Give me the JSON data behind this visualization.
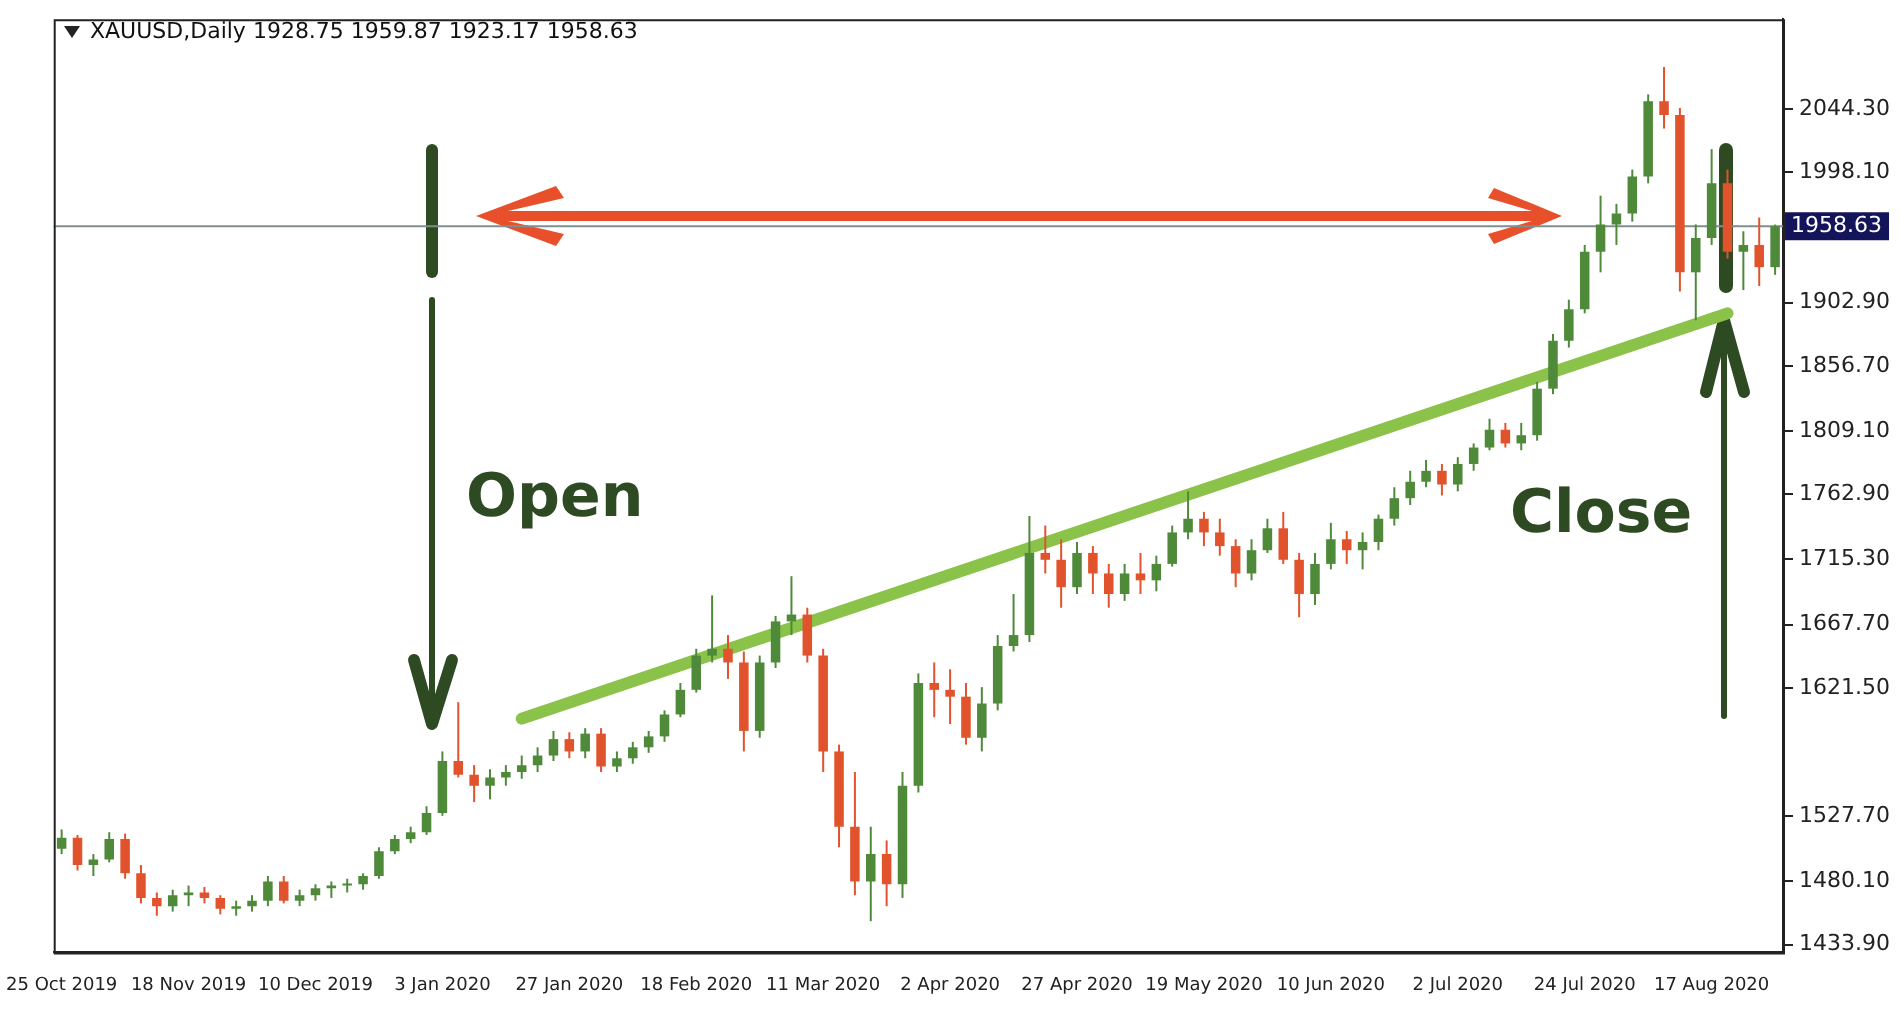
{
  "chart_data": {
    "type": "candlestick",
    "title": "XAUUSD,Daily 1928.75 1959.87 1923.17 1958.63",
    "categories": [
      "25 Oct 2019",
      null,
      null,
      null,
      null,
      null,
      null,
      null,
      "18 Nov 2019",
      null,
      null,
      null,
      null,
      null,
      null,
      null,
      "10 Dec 2019",
      null,
      null,
      null,
      null,
      null,
      null,
      null,
      "3 Jan 2020",
      null,
      null,
      null,
      null,
      null,
      null,
      null,
      "27 Jan 2020",
      null,
      null,
      null,
      null,
      null,
      null,
      null,
      "18 Feb 2020",
      null,
      null,
      null,
      null,
      null,
      null,
      null,
      "11 Mar 2020",
      null,
      null,
      null,
      null,
      null,
      null,
      null,
      "2 Apr 2020",
      null,
      null,
      null,
      null,
      null,
      null,
      null,
      "27 Apr 2020",
      null,
      null,
      null,
      null,
      null,
      null,
      null,
      "19 May 2020",
      null,
      null,
      null,
      null,
      null,
      null,
      null,
      "10 Jun 2020",
      null,
      null,
      null,
      null,
      null,
      null,
      null,
      "2 Jul 2020",
      null,
      null,
      null,
      null,
      null,
      null,
      null,
      "24 Jul 2020",
      null,
      null,
      null,
      null,
      null,
      null,
      null,
      "17 Aug 2020",
      null,
      null,
      null,
      null
    ],
    "ohlc": [
      [
        1504,
        1518,
        1500,
        1512
      ],
      [
        1512,
        1514,
        1488,
        1492
      ],
      [
        1492,
        1500,
        1484,
        1496
      ],
      [
        1496,
        1516,
        1494,
        1511
      ],
      [
        1511,
        1515,
        1482,
        1486
      ],
      [
        1486,
        1492,
        1464,
        1468
      ],
      [
        1468,
        1472,
        1455,
        1462
      ],
      [
        1462,
        1474,
        1458,
        1470
      ],
      [
        1470,
        1477,
        1462,
        1472
      ],
      [
        1472,
        1476,
        1464,
        1468
      ],
      [
        1468,
        1470,
        1456,
        1460
      ],
      [
        1460,
        1466,
        1455,
        1462
      ],
      [
        1462,
        1470,
        1458,
        1466
      ],
      [
        1466,
        1484,
        1462,
        1480
      ],
      [
        1480,
        1484,
        1464,
        1466
      ],
      [
        1466,
        1474,
        1462,
        1470
      ],
      [
        1470,
        1478,
        1466,
        1475
      ],
      [
        1475,
        1480,
        1468,
        1477
      ],
      [
        1477,
        1482,
        1472,
        1478
      ],
      [
        1478,
        1486,
        1474,
        1484
      ],
      [
        1484,
        1505,
        1482,
        1502
      ],
      [
        1502,
        1514,
        1500,
        1511
      ],
      [
        1511,
        1520,
        1508,
        1516
      ],
      [
        1516,
        1535,
        1514,
        1530
      ],
      [
        1530,
        1575,
        1528,
        1568
      ],
      [
        1568,
        1611,
        1556,
        1558
      ],
      [
        1558,
        1565,
        1538,
        1550
      ],
      [
        1550,
        1562,
        1540,
        1556
      ],
      [
        1556,
        1565,
        1550,
        1560
      ],
      [
        1560,
        1572,
        1555,
        1565
      ],
      [
        1565,
        1578,
        1560,
        1572
      ],
      [
        1572,
        1590,
        1568,
        1584
      ],
      [
        1584,
        1589,
        1570,
        1575
      ],
      [
        1575,
        1592,
        1570,
        1588
      ],
      [
        1588,
        1592,
        1560,
        1564
      ],
      [
        1564,
        1575,
        1560,
        1570
      ],
      [
        1570,
        1582,
        1566,
        1578
      ],
      [
        1578,
        1590,
        1574,
        1586
      ],
      [
        1586,
        1605,
        1582,
        1602
      ],
      [
        1602,
        1625,
        1600,
        1620
      ],
      [
        1620,
        1650,
        1618,
        1645
      ],
      [
        1645,
        1689,
        1640,
        1650
      ],
      [
        1650,
        1660,
        1628,
        1640
      ],
      [
        1640,
        1648,
        1575,
        1590
      ],
      [
        1590,
        1645,
        1585,
        1640
      ],
      [
        1640,
        1674,
        1636,
        1670
      ],
      [
        1670,
        1703,
        1660,
        1675
      ],
      [
        1675,
        1680,
        1640,
        1645
      ],
      [
        1645,
        1650,
        1560,
        1575
      ],
      [
        1575,
        1580,
        1505,
        1520
      ],
      [
        1520,
        1560,
        1470,
        1480
      ],
      [
        1480,
        1520,
        1451,
        1500
      ],
      [
        1500,
        1510,
        1462,
        1478
      ],
      [
        1478,
        1560,
        1468,
        1550
      ],
      [
        1550,
        1632,
        1545,
        1625
      ],
      [
        1625,
        1640,
        1600,
        1620
      ],
      [
        1620,
        1635,
        1595,
        1615
      ],
      [
        1615,
        1625,
        1580,
        1585
      ],
      [
        1585,
        1622,
        1575,
        1610
      ],
      [
        1610,
        1660,
        1605,
        1652
      ],
      [
        1652,
        1690,
        1648,
        1660
      ],
      [
        1660,
        1747,
        1655,
        1720
      ],
      [
        1720,
        1740,
        1705,
        1715
      ],
      [
        1715,
        1730,
        1680,
        1695
      ],
      [
        1695,
        1728,
        1690,
        1720
      ],
      [
        1720,
        1725,
        1690,
        1705
      ],
      [
        1705,
        1712,
        1680,
        1690
      ],
      [
        1690,
        1712,
        1685,
        1705
      ],
      [
        1705,
        1720,
        1690,
        1700
      ],
      [
        1700,
        1718,
        1692,
        1712
      ],
      [
        1712,
        1740,
        1710,
        1735
      ],
      [
        1735,
        1765,
        1730,
        1745
      ],
      [
        1745,
        1750,
        1725,
        1735
      ],
      [
        1735,
        1745,
        1718,
        1725
      ],
      [
        1725,
        1730,
        1695,
        1705
      ],
      [
        1705,
        1730,
        1700,
        1722
      ],
      [
        1722,
        1745,
        1720,
        1738
      ],
      [
        1738,
        1750,
        1712,
        1715
      ],
      [
        1715,
        1720,
        1673,
        1690
      ],
      [
        1690,
        1720,
        1682,
        1712
      ],
      [
        1712,
        1742,
        1708,
        1730
      ],
      [
        1730,
        1736,
        1712,
        1722
      ],
      [
        1722,
        1735,
        1708,
        1728
      ],
      [
        1728,
        1748,
        1722,
        1745
      ],
      [
        1745,
        1768,
        1740,
        1760
      ],
      [
        1760,
        1780,
        1755,
        1772
      ],
      [
        1772,
        1788,
        1768,
        1780
      ],
      [
        1780,
        1785,
        1762,
        1770
      ],
      [
        1770,
        1790,
        1765,
        1785
      ],
      [
        1785,
        1800,
        1780,
        1797
      ],
      [
        1797,
        1818,
        1795,
        1810
      ],
      [
        1810,
        1815,
        1797,
        1800
      ],
      [
        1800,
        1815,
        1795,
        1806
      ],
      [
        1806,
        1845,
        1802,
        1840
      ],
      [
        1840,
        1880,
        1836,
        1875
      ],
      [
        1875,
        1905,
        1870,
        1898
      ],
      [
        1898,
        1945,
        1895,
        1940
      ],
      [
        1940,
        1981,
        1925,
        1960
      ],
      [
        1960,
        1975,
        1945,
        1968
      ],
      [
        1968,
        2000,
        1962,
        1995
      ],
      [
        1995,
        2055,
        1990,
        2050
      ],
      [
        2050,
        2075,
        2030,
        2040
      ],
      [
        2040,
        2045,
        1911,
        1925
      ],
      [
        1925,
        1960,
        1890,
        1950
      ],
      [
        1950,
        2015,
        1945,
        1990
      ],
      [
        1990,
        2000,
        1935,
        1940
      ],
      [
        1940,
        1955,
        1912,
        1945
      ],
      [
        1945,
        1965,
        1915,
        1928.75
      ],
      [
        1928.75,
        1959.87,
        1923.17,
        1958.63
      ]
    ],
    "colors": [
      "#4f8a3a",
      "#e0532c",
      "#4f8a3a",
      "#4f8a3a",
      "#e0532c",
      "#e0532c",
      "#e0532c",
      "#4f8a3a",
      "#4f8a3a",
      "#e0532c",
      "#e0532c",
      "#4f8a3a",
      "#4f8a3a",
      "#4f8a3a",
      "#e0532c",
      "#4f8a3a",
      "#4f8a3a",
      "#4f8a3a",
      "#4f8a3a",
      "#4f8a3a",
      "#4f8a3a",
      "#4f8a3a",
      "#4f8a3a",
      "#4f8a3a",
      "#4f8a3a",
      "#e0532c",
      "#e0532c",
      "#4f8a3a",
      "#4f8a3a",
      "#4f8a3a",
      "#4f8a3a",
      "#4f8a3a",
      "#e0532c",
      "#4f8a3a",
      "#e0532c",
      "#4f8a3a",
      "#4f8a3a",
      "#4f8a3a",
      "#4f8a3a",
      "#4f8a3a",
      "#4f8a3a",
      "#4f8a3a",
      "#e0532c",
      "#e0532c",
      "#4f8a3a",
      "#4f8a3a",
      "#4f8a3a",
      "#e0532c",
      "#e0532c",
      "#e0532c",
      "#e0532c",
      "#4f8a3a",
      "#e0532c",
      "#4f8a3a",
      "#4f8a3a",
      "#e0532c",
      "#e0532c",
      "#e0532c",
      "#4f8a3a",
      "#4f8a3a",
      "#4f8a3a",
      "#4f8a3a",
      "#e0532c",
      "#e0532c",
      "#4f8a3a",
      "#e0532c",
      "#e0532c",
      "#4f8a3a",
      "#e0532c",
      "#4f8a3a",
      "#4f8a3a",
      "#4f8a3a",
      "#e0532c",
      "#e0532c",
      "#e0532c",
      "#4f8a3a",
      "#4f8a3a",
      "#e0532c",
      "#e0532c",
      "#4f8a3a",
      "#4f8a3a",
      "#e0532c",
      "#4f8a3a",
      "#4f8a3a",
      "#4f8a3a",
      "#4f8a3a",
      "#4f8a3a",
      "#e0532c",
      "#4f8a3a",
      "#4f8a3a",
      "#4f8a3a",
      "#e0532c",
      "#4f8a3a",
      "#4f8a3a",
      "#4f8a3a",
      "#4f8a3a",
      "#4f8a3a",
      "#4f8a3a",
      "#4f8a3a",
      "#4f8a3a",
      "#4f8a3a",
      "#e0532c",
      "#e0532c",
      "#4f8a3a",
      "#4f8a3a",
      "#e0532c",
      "#4f8a3a",
      "#e0532c",
      "#4f8a3a"
    ],
    "series": [
      {
        "type": "line",
        "color": "#8bc34a",
        "values": [
          null,
          null,
          null,
          null,
          null,
          null,
          null,
          null,
          null,
          null,
          null,
          null,
          null,
          null,
          null,
          null,
          null,
          null,
          null,
          null,
          null,
          null,
          null,
          null,
          null,
          null,
          null,
          null,
          null,
          1599,
          null,
          null,
          null,
          null,
          null,
          null,
          null,
          null,
          null,
          null,
          null,
          null,
          null,
          null,
          null,
          null,
          null,
          null,
          null,
          null,
          null,
          null,
          null,
          null,
          null,
          null,
          null,
          null,
          null,
          null,
          null,
          null,
          null,
          null,
          null,
          null,
          null,
          null,
          null,
          null,
          null,
          null,
          null,
          null,
          null,
          null,
          null,
          null,
          null,
          null,
          null,
          null,
          null,
          null,
          null,
          null,
          null,
          null,
          null,
          null,
          null,
          null,
          null,
          null,
          null,
          null,
          null,
          null,
          null,
          null,
          null,
          null,
          null,
          null,
          null,
          1895,
          null,
          null,
          null
        ]
      }
    ],
    "ylim": [
      1428.2,
      2109.9
    ],
    "yticks": [
      {
        "value": 1433.9,
        "label": "1433.90"
      },
      {
        "value": 1480.1,
        "label": "1480.10"
      },
      {
        "value": 1527.7,
        "label": "1527.70"
      },
      {
        "value": 1621.5,
        "label": "1621.50"
      },
      {
        "value": 1667.7,
        "label": "1667.70"
      },
      {
        "value": 1715.3,
        "label": "1715.30"
      },
      {
        "value": 1762.9,
        "label": "1762.90"
      },
      {
        "value": 1809.1,
        "label": "1809.10"
      },
      {
        "value": 1856.7,
        "label": "1856.70"
      },
      {
        "value": 1902.9,
        "label": "1902.90"
      },
      {
        "value": 1950.5,
        "label": null
      },
      {
        "value": 1998.1,
        "label": "1998.10"
      },
      {
        "value": 2044.3,
        "label": "2044.30"
      }
    ],
    "ref_lines": [
      {
        "axis": "y",
        "value": 1958.63,
        "label": "1958.63",
        "color": "#7f8f8f"
      }
    ],
    "annotations": [
      "Open",
      "Close"
    ]
  }
}
